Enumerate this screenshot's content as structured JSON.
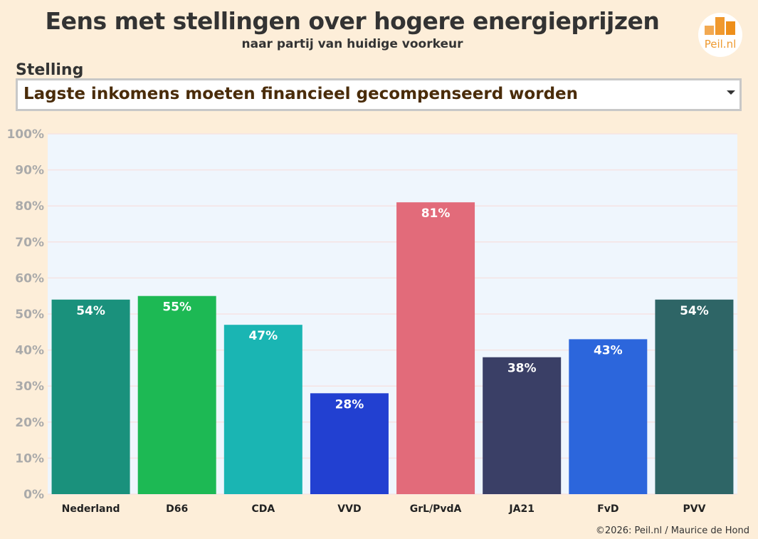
{
  "title": "Eens met stellingen over hogere energieprijzen",
  "subtitle": "naar partij van huidige voorkeur",
  "logo_text": "Peil.nl",
  "selector": {
    "label": "Stelling",
    "value": "Lagste inkomens moeten financieel gecompenseerd worden"
  },
  "footer": "©2026: Peil.nl / Maurice de Hond",
  "chart_data": {
    "type": "bar",
    "categories": [
      "Nederland",
      "D66",
      "CDA",
      "VVD",
      "GrL/PvdA",
      "JA21",
      "FvD",
      "PVV"
    ],
    "values": [
      54,
      55,
      47,
      28,
      81,
      38,
      43,
      54
    ],
    "value_labels": [
      "54%",
      "55%",
      "47%",
      "28%",
      "81%",
      "38%",
      "43%",
      "54%"
    ],
    "colors": [
      "#1a917c",
      "#1db954",
      "#1ab5b3",
      "#2240d1",
      "#e26b7a",
      "#3a3f66",
      "#2c66dc",
      "#2e6566"
    ],
    "ylim": [
      0,
      100
    ],
    "yticks": [
      "0%",
      "10%",
      "20%",
      "30%",
      "40%",
      "50%",
      "60%",
      "70%",
      "80%",
      "90%",
      "100%"
    ],
    "grid": true,
    "plot_background": "#eff6fd"
  }
}
